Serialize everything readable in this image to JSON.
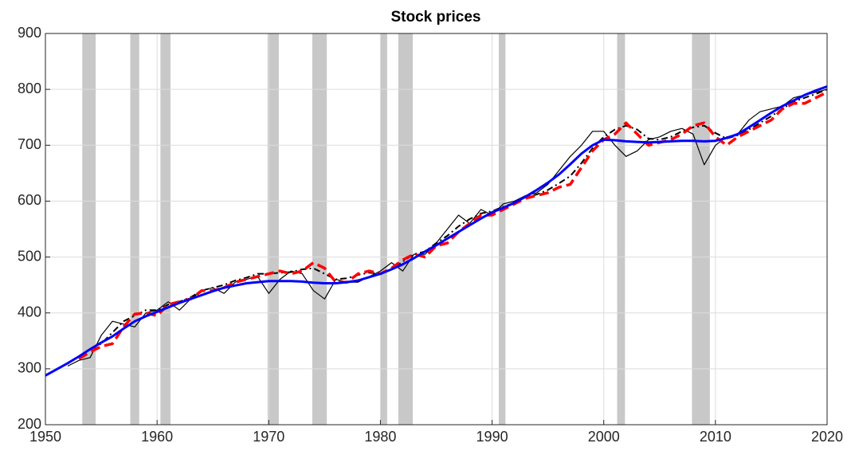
{
  "chart_data": {
    "type": "line",
    "title": "Stock prices",
    "x": [
      1950,
      1951,
      1952,
      1953,
      1954,
      1955,
      1956,
      1957,
      1958,
      1959,
      1960,
      1961,
      1962,
      1963,
      1964,
      1965,
      1966,
      1967,
      1968,
      1969,
      1970,
      1971,
      1972,
      1973,
      1974,
      1975,
      1976,
      1977,
      1978,
      1979,
      1980,
      1981,
      1982,
      1983,
      1984,
      1985,
      1986,
      1987,
      1988,
      1989,
      1990,
      1991,
      1992,
      1993,
      1994,
      1995,
      1996,
      1997,
      1998,
      1999,
      2000,
      2001,
      2002,
      2003,
      2004,
      2005,
      2006,
      2007,
      2008,
      2009,
      2010,
      2011,
      2012,
      2013,
      2014,
      2015,
      2016,
      2017,
      2018,
      2019,
      2020
    ],
    "series": [
      {
        "color": "#000000",
        "style": "solid",
        "width": 1.2,
        "values": [
          null,
          null,
          305,
          315,
          320,
          360,
          385,
          380,
          375,
          400,
          405,
          420,
          405,
          425,
          440,
          445,
          435,
          455,
          460,
          465,
          435,
          460,
          475,
          470,
          440,
          425,
          460,
          455,
          455,
          465,
          475,
          490,
          475,
          505,
          505,
          525,
          550,
          575,
          560,
          585,
          575,
          595,
          600,
          610,
          615,
          630,
          655,
          680,
          700,
          725,
          725,
          700,
          680,
          690,
          710,
          715,
          725,
          730,
          720,
          665,
          700,
          715,
          720,
          745,
          760,
          765,
          770,
          785,
          790,
          795,
          800
        ]
      },
      {
        "color": "#000000",
        "style": "dashdot",
        "width": 2,
        "values": [
          null,
          null,
          null,
          322,
          335,
          345,
          365,
          385,
          395,
          405,
          405,
          415,
          420,
          428,
          440,
          445,
          450,
          458,
          463,
          470,
          470,
          472,
          473,
          478,
          480,
          470,
          460,
          462,
          468,
          472,
          470,
          478,
          492,
          505,
          510,
          525,
          538,
          555,
          568,
          578,
          582,
          590,
          597,
          607,
          612,
          620,
          632,
          645,
          668,
          695,
          715,
          728,
          735,
          728,
          712,
          710,
          715,
          725,
          732,
          735,
          722,
          712,
          718,
          728,
          740,
          752,
          765,
          778,
          785,
          792,
          800
        ]
      },
      {
        "color": "#ff0000",
        "style": "dashed",
        "width": 3.5,
        "values": [
          null,
          null,
          null,
          318,
          330,
          340,
          345,
          375,
          398,
          400,
          395,
          415,
          420,
          425,
          440,
          440,
          445,
          455,
          460,
          465,
          470,
          475,
          470,
          475,
          490,
          480,
          455,
          455,
          470,
          475,
          470,
          480,
          495,
          505,
          500,
          520,
          525,
          545,
          560,
          575,
          575,
          585,
          595,
          605,
          610,
          615,
          625,
          630,
          660,
          690,
          710,
          720,
          740,
          720,
          700,
          705,
          710,
          720,
          735,
          740,
          715,
          700,
          715,
          725,
          735,
          745,
          765,
          775,
          775,
          785,
          795
        ]
      },
      {
        "color": "#0000ff",
        "style": "solid",
        "width": 3,
        "values": [
          288,
          299,
          310,
          322,
          335,
          347,
          358,
          372,
          385,
          394,
          402,
          410,
          418,
          425,
          432,
          439,
          445,
          449,
          453,
          455,
          457,
          457,
          457,
          456,
          454,
          453,
          453,
          455,
          458,
          464,
          470,
          478,
          487,
          498,
          510,
          521,
          533,
          545,
          557,
          569,
          580,
          588,
          597,
          608,
          620,
          633,
          648,
          666,
          685,
          700,
          710,
          709,
          707,
          706,
          705,
          706,
          707,
          708,
          708,
          707,
          708,
          713,
          720,
          732,
          745,
          758,
          770,
          780,
          790,
          798,
          805
        ]
      }
    ],
    "recessions": [
      [
        1953.3,
        1954.5
      ],
      [
        1957.6,
        1958.4
      ],
      [
        1960.3,
        1961.2
      ],
      [
        1969.9,
        1970.9
      ],
      [
        1973.9,
        1975.2
      ],
      [
        1980.0,
        1980.6
      ],
      [
        1981.6,
        1982.9
      ],
      [
        1990.6,
        1991.2
      ],
      [
        2001.2,
        2001.9
      ],
      [
        2007.9,
        2009.5
      ]
    ],
    "recession_color": "#c8c8c8",
    "xlim": [
      1950,
      2020
    ],
    "xticks": [
      1950,
      1960,
      1970,
      1980,
      1990,
      2000,
      2010,
      2020
    ],
    "ylim": [
      200,
      900
    ],
    "yticks": [
      200,
      300,
      400,
      500,
      600,
      700,
      800,
      900
    ],
    "grid": true
  }
}
